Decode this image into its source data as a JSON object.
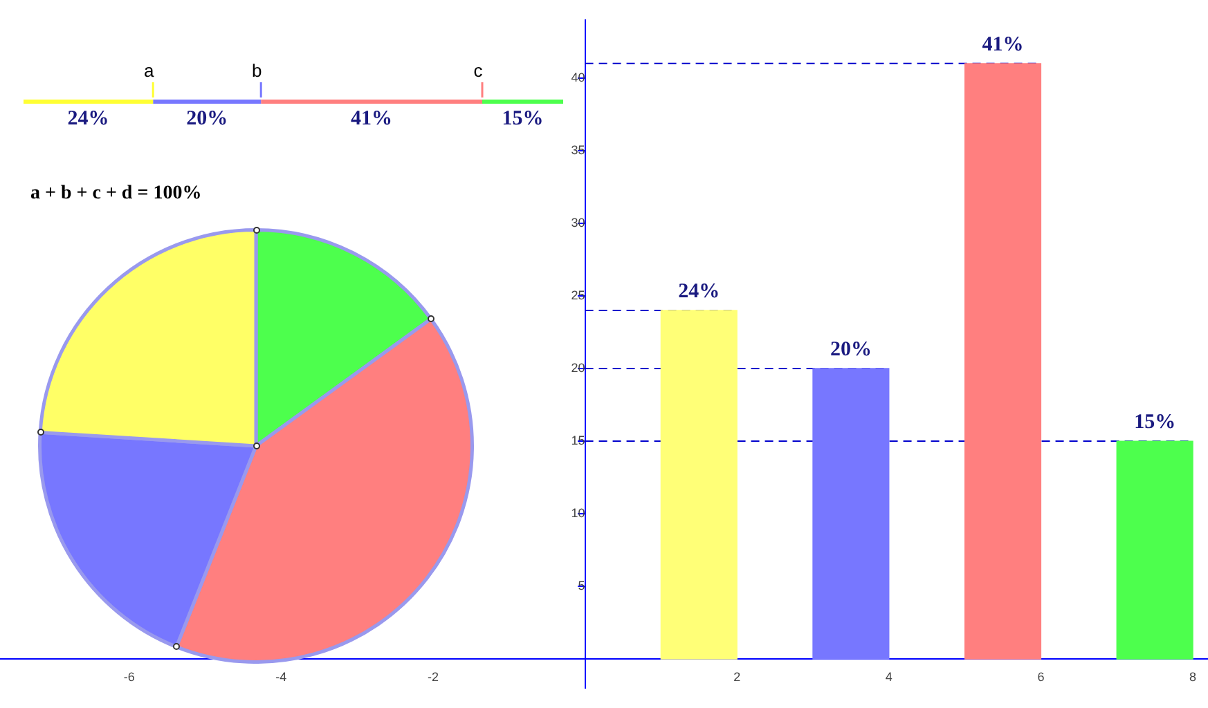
{
  "chart_data": [
    {
      "type": "bar",
      "orientation": "horizontal",
      "stacked": true,
      "categories": [
        null
      ],
      "series": [
        {
          "color": "#ffff33",
          "values": [
            24
          ],
          "value_labels": [
            "24%"
          ]
        },
        {
          "color": "#7777ff",
          "values": [
            20
          ],
          "value_labels": [
            "20%"
          ]
        },
        {
          "color": "#ff7f7f",
          "values": [
            41
          ],
          "value_labels": [
            "41%"
          ]
        },
        {
          "color": "#4dff4d",
          "values": [
            15
          ],
          "value_labels": [
            "15%"
          ]
        }
      ],
      "annotations": [
        "a",
        "b",
        "c"
      ]
    },
    {
      "type": "pie",
      "categories": [
        null,
        null,
        null,
        null
      ],
      "values": [
        15,
        41,
        20,
        24
      ],
      "colors": [
        "#4dff4d",
        "#ff7f7f",
        "#7777ff",
        "#ffff66"
      ],
      "annotations": [
        "a + b + c + d = 100%"
      ]
    },
    {
      "type": "bar",
      "x": [
        1.5,
        3.5,
        5.5,
        7.5
      ],
      "values": [
        24,
        20,
        41,
        15
      ],
      "colors": [
        "#ffff77",
        "#7777ff",
        "#ff7f7f",
        "#4dff4d"
      ],
      "value_labels": [
        "24%",
        "20%",
        "41%",
        "15%"
      ],
      "xlim": [
        -7.7,
        8.2
      ],
      "xticks": [
        -6,
        -4,
        -2,
        2,
        4,
        6,
        8
      ],
      "ylim": [
        -2,
        44
      ],
      "yticks": [
        5,
        10,
        15,
        20,
        25,
        30,
        35,
        40
      ],
      "ref_lines": [
        {
          "axis": "y",
          "value": 24,
          "color": "#0000cc",
          "line_style": "dashed"
        },
        {
          "axis": "y",
          "value": 20,
          "color": "#0000cc",
          "line_style": "dashed"
        },
        {
          "axis": "y",
          "value": 41,
          "color": "#0000cc",
          "line_style": "dashed"
        },
        {
          "axis": "y",
          "value": 15,
          "color": "#0000cc",
          "line_style": "dashed"
        }
      ],
      "grid": false,
      "legend": false
    }
  ]
}
